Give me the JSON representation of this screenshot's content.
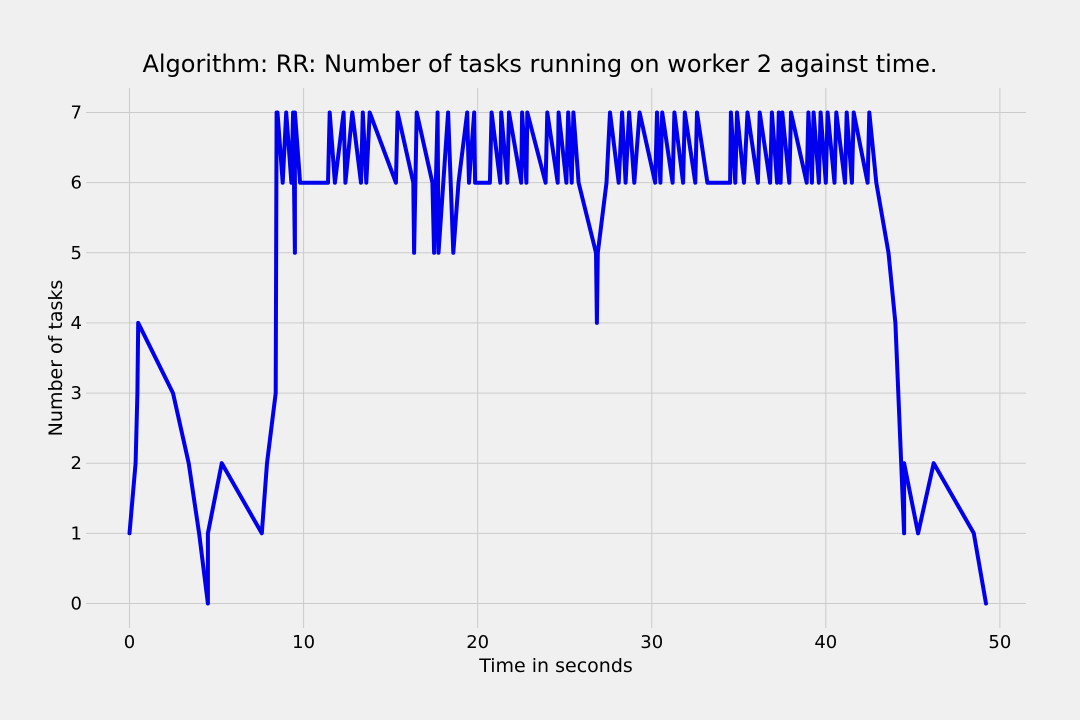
{
  "chart_data": {
    "type": "line",
    "title": "Algorithm: RR: Number of tasks running on worker 2 against time.",
    "xlabel": "Time in seconds",
    "ylabel": "Number of tasks",
    "xlim": [
      -2.5,
      51.5
    ],
    "ylim": [
      -0.35,
      7.35
    ],
    "xticks": [
      0,
      10,
      20,
      30,
      40,
      50
    ],
    "yticks": [
      0,
      1,
      2,
      3,
      4,
      5,
      6,
      7
    ],
    "grid": true,
    "colors": {
      "background": "#f0f0f0",
      "grid": "#cbcbcb",
      "series": "#0000ee"
    },
    "series": [
      {
        "color": "#0000ee",
        "x": [
          0.0,
          0.35,
          0.45,
          0.5,
          2.5,
          3.4,
          4.0,
          4.5,
          4.5,
          5.3,
          7.6,
          7.9,
          8.4,
          8.45,
          8.5,
          8.8,
          9.0,
          9.3,
          9.4,
          9.5,
          9.5,
          9.8,
          11.4,
          11.5,
          11.8,
          12.3,
          12.4,
          12.8,
          13.3,
          13.4,
          13.6,
          13.8,
          15.3,
          15.4,
          16.3,
          16.35,
          16.5,
          17.4,
          17.5,
          17.7,
          17.75,
          18.3,
          18.6,
          18.9,
          19.4,
          19.5,
          19.8,
          19.85,
          20.7,
          20.8,
          21.3,
          21.35,
          21.7,
          21.8,
          22.5,
          22.55,
          22.8,
          22.85,
          23.9,
          24.0,
          24.6,
          24.65,
          25.1,
          25.2,
          25.4,
          25.5,
          25.8,
          26.8,
          26.85,
          26.9,
          27.4,
          27.6,
          28.1,
          28.3,
          28.5,
          28.7,
          29.0,
          29.3,
          30.2,
          30.3,
          30.5,
          30.6,
          31.2,
          31.3,
          31.8,
          31.9,
          32.5,
          32.6,
          33.2,
          34.5,
          34.55,
          34.8,
          34.9,
          35.3,
          35.5,
          36.1,
          36.2,
          36.8,
          36.9,
          37.2,
          37.3,
          37.4,
          37.5,
          37.9,
          38.0,
          38.9,
          39.0,
          39.2,
          39.3,
          39.6,
          39.7,
          40.0,
          40.1,
          40.5,
          40.6,
          41.1,
          41.2,
          41.5,
          41.6,
          42.4,
          42.5,
          42.9,
          43.6,
          44.0,
          44.5,
          44.5,
          45.3,
          46.2,
          48.5,
          49.2
        ],
        "y": [
          1,
          2,
          3,
          4,
          3,
          2,
          1,
          0,
          1,
          2,
          1,
          2,
          3,
          7,
          7,
          6,
          7,
          6,
          7,
          5,
          7,
          6,
          6,
          7,
          6,
          7,
          6,
          7,
          6,
          7,
          6,
          7,
          6,
          7,
          6,
          5,
          7,
          6,
          5,
          7,
          5,
          7,
          5,
          6,
          7,
          6,
          7,
          6,
          6,
          7,
          6,
          7,
          6,
          7,
          6,
          7,
          6,
          7,
          6,
          7,
          6,
          7,
          6,
          7,
          6,
          7,
          6,
          5,
          4,
          5,
          6,
          7,
          6,
          7,
          6,
          7,
          6,
          7,
          6,
          7,
          6,
          7,
          6,
          7,
          6,
          7,
          6,
          7,
          6,
          6,
          7,
          6,
          7,
          6,
          7,
          6,
          7,
          6,
          7,
          6,
          7,
          6,
          7,
          6,
          7,
          6,
          7,
          6,
          7,
          6,
          7,
          6,
          7,
          6,
          7,
          6,
          7,
          6,
          7,
          6,
          7,
          6,
          5,
          4,
          1,
          2,
          1,
          2,
          1,
          0
        ]
      }
    ]
  }
}
